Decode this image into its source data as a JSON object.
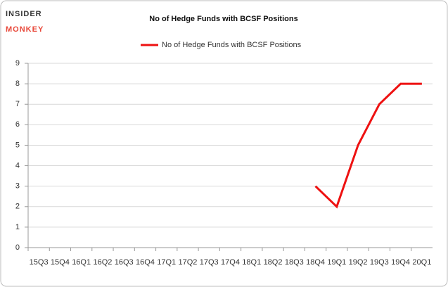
{
  "logo": {
    "line1": "INSIDER",
    "line2": "MONKEY"
  },
  "chart_data": {
    "type": "line",
    "title": "No of Hedge Funds with BCSF Positions",
    "categories": [
      "15Q3",
      "15Q4",
      "16Q1",
      "16Q2",
      "16Q3",
      "16Q4",
      "17Q1",
      "17Q2",
      "17Q3",
      "17Q4",
      "18Q1",
      "18Q2",
      "18Q3",
      "18Q4",
      "19Q1",
      "19Q2",
      "19Q3",
      "19Q4",
      "20Q1"
    ],
    "series": [
      {
        "name": "No of Hedge Funds with BCSF Positions",
        "color": "#ee1111",
        "values": [
          null,
          null,
          null,
          null,
          null,
          null,
          null,
          null,
          null,
          null,
          null,
          null,
          null,
          3,
          2,
          5,
          7,
          8,
          8
        ]
      }
    ],
    "ylim": [
      0,
      9
    ],
    "yticks": [
      0,
      1,
      2,
      3,
      4,
      5,
      6,
      7,
      8,
      9
    ],
    "grid": true,
    "legend": "top"
  }
}
